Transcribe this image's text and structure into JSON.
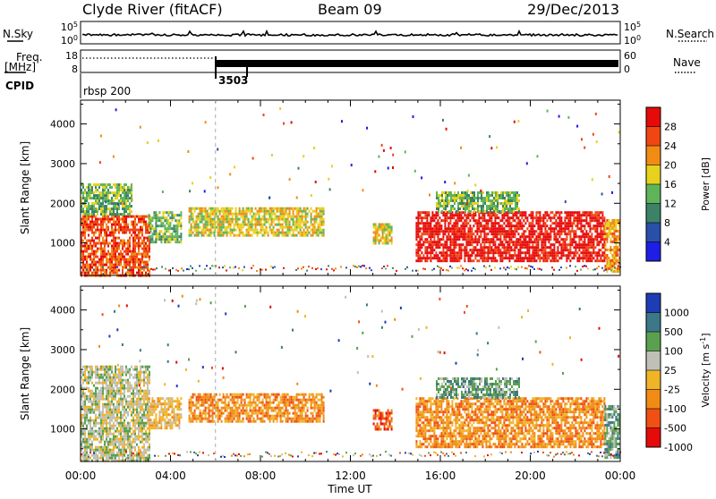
{
  "header": {
    "station": "Clyde River (fitACF)",
    "beam": "Beam 09",
    "date": "29/Dec/2013"
  },
  "strips": {
    "nsky_label": "N.Sky",
    "nsky_ticks": [
      "10^5",
      "10^0"
    ],
    "nsearch_label": "N.Search",
    "nsearch_ticks": [
      "10^5",
      "10^0"
    ],
    "freq_label": "Freq.",
    "freq_unit": "[MHz]",
    "freq_ticks": [
      "18",
      "8"
    ],
    "nave_label": "Nave",
    "nave_ticks": [
      "60",
      "0"
    ],
    "cpid_label": "CPID",
    "cpid_segments": [
      {
        "label": "rbsp 200",
        "start_hour": 0
      },
      {
        "label": "3503",
        "start_hour": 6
      }
    ]
  },
  "chart_data": [
    {
      "type": "heatmap",
      "panel": "power",
      "xlabel": "",
      "ylabel": "Slant Range [km]",
      "xlim": [
        0,
        24
      ],
      "ylim": [
        180,
        4600
      ],
      "yticks": [
        1000,
        2000,
        3000,
        4000
      ],
      "colorbar": {
        "label": "Power [dB]",
        "tick_labels": [
          "28",
          "24",
          "20",
          "16",
          "12",
          "8",
          "4"
        ],
        "levels": [
          {
            "min": 0,
            "max": 4,
            "color": "#1e1ee6"
          },
          {
            "min": 4,
            "max": 8,
            "color": "#2850a8"
          },
          {
            "min": 8,
            "max": 12,
            "color": "#3c8266"
          },
          {
            "min": 12,
            "max": 16,
            "color": "#5fb45a"
          },
          {
            "min": 16,
            "max": 20,
            "color": "#e6d21e"
          },
          {
            "min": 20,
            "max": 24,
            "color": "#f08c14"
          },
          {
            "min": 24,
            "max": 28,
            "color": "#f04614"
          },
          {
            "min": 28,
            "max": 32,
            "color": "#e60a0a"
          }
        ]
      },
      "regions": [
        {
          "x0": 0.0,
          "x1": 3.1,
          "y0": 200,
          "y1": 1700,
          "value": 26
        },
        {
          "x0": 0.0,
          "x1": 2.3,
          "y0": 1700,
          "y1": 2500,
          "value": 12
        },
        {
          "x0": 3.0,
          "x1": 4.5,
          "y0": 1000,
          "y1": 1800,
          "value": 14
        },
        {
          "x0": 4.8,
          "x1": 10.8,
          "y0": 1200,
          "y1": 1900,
          "value": 16
        },
        {
          "x0": 13.0,
          "x1": 13.8,
          "y0": 1000,
          "y1": 1500,
          "value": 18
        },
        {
          "x0": 14.9,
          "x1": 23.3,
          "y0": 550,
          "y1": 1800,
          "value": 28
        },
        {
          "x0": 15.8,
          "x1": 19.5,
          "y0": 1800,
          "y1": 2300,
          "value": 12
        },
        {
          "x0": 23.3,
          "x1": 24.0,
          "y0": 300,
          "y1": 1600,
          "value": 22
        }
      ]
    },
    {
      "type": "heatmap",
      "panel": "velocity",
      "xlabel": "Time UT",
      "ylabel": "Slant Range [km]",
      "xlim": [
        0,
        24
      ],
      "ylim": [
        180,
        4600
      ],
      "xticks": [
        "00:00",
        "04:00",
        "08:00",
        "12:00",
        "16:00",
        "20:00",
        "00:00"
      ],
      "yticks": [
        1000,
        2000,
        3000,
        4000
      ],
      "colorbar": {
        "label": "Velocity [m s^-1]",
        "tick_labels": [
          "1000",
          "500",
          "100",
          "25",
          "-25",
          "-100",
          "-500",
          "-1000"
        ],
        "levels": [
          {
            "min": 500,
            "max": 1000,
            "color": "#1e3cb4"
          },
          {
            "min": 100,
            "max": 500,
            "color": "#3c7888"
          },
          {
            "min": 25,
            "max": 100,
            "color": "#5aa050"
          },
          {
            "min": -25,
            "max": 25,
            "color": "#c0c0b8"
          },
          {
            "min": -100,
            "max": -25,
            "color": "#f0b428"
          },
          {
            "min": -500,
            "max": -100,
            "color": "#f08c14"
          },
          {
            "min": -1000,
            "max": -500,
            "color": "#f05014"
          },
          {
            "min": -1500,
            "max": -1000,
            "color": "#e60a0a"
          }
        ]
      },
      "regions": [
        {
          "x0": 0.0,
          "x1": 3.1,
          "y0": 200,
          "y1": 2600,
          "value": 20
        },
        {
          "x0": 3.0,
          "x1": 4.5,
          "y0": 1000,
          "y1": 1800,
          "value": -60
        },
        {
          "x0": 4.8,
          "x1": 10.8,
          "y0": 1200,
          "y1": 1900,
          "value": -200
        },
        {
          "x0": 13.0,
          "x1": 13.8,
          "y0": 1000,
          "y1": 1500,
          "value": -700
        },
        {
          "x0": 14.9,
          "x1": 23.3,
          "y0": 550,
          "y1": 1800,
          "value": -300
        },
        {
          "x0": 15.8,
          "x1": 19.5,
          "y0": 1800,
          "y1": 2300,
          "value": 60
        },
        {
          "x0": 23.3,
          "x1": 24.0,
          "y0": 300,
          "y1": 1600,
          "value": 60
        }
      ]
    }
  ]
}
